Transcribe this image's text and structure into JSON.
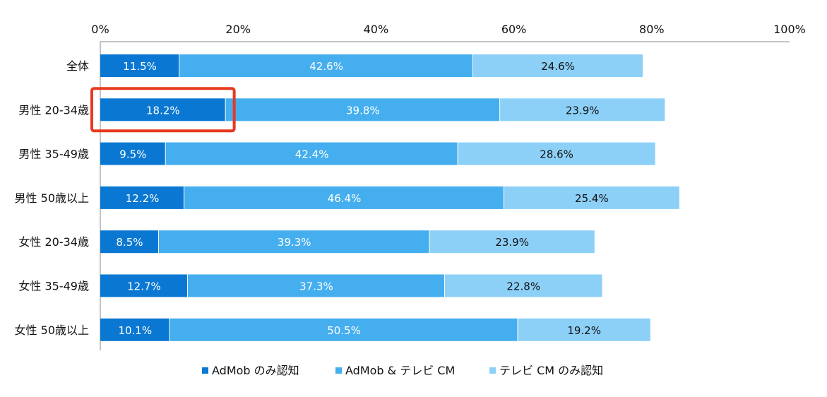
{
  "chart_data": {
    "type": "bar",
    "orientation": "horizontal",
    "stacked": true,
    "categories": [
      "全体",
      "男性 20-34歳",
      "男性 35-49歳",
      "男性 50歳以上",
      "女性 20-34歳",
      "女性 35-49歳",
      "女性 50歳以上"
    ],
    "series": [
      {
        "name": "AdMob のみ認知",
        "color": "#0a78d2",
        "label_color": "#ffffff",
        "values": [
          11.5,
          18.2,
          9.5,
          12.2,
          8.5,
          12.7,
          10.1
        ],
        "labels": [
          "11.5%",
          "18.2%",
          "9.5%",
          "12.2%",
          "8.5%",
          "12.7%",
          "10.1%"
        ]
      },
      {
        "name": "AdMob & テレビ CM",
        "color": "#45aeee",
        "label_color": "#ffffff",
        "values": [
          42.6,
          39.8,
          42.4,
          46.4,
          39.3,
          37.3,
          50.5
        ],
        "labels": [
          "42.6%",
          "39.8%",
          "42.4%",
          "46.4%",
          "39.3%",
          "37.3%",
          "50.5%"
        ]
      },
      {
        "name": "テレビ CM のみ認知",
        "color": "#8dd0f7",
        "label_color": "#111111",
        "values": [
          24.6,
          23.9,
          28.6,
          25.4,
          23.9,
          22.8,
          19.2
        ],
        "labels": [
          "24.6%",
          "23.9%",
          "28.6%",
          "25.4%",
          "23.9%",
          "22.8%",
          "19.2%"
        ]
      }
    ],
    "xlim": [
      0,
      100
    ],
    "x_ticks": [
      "0%",
      "20%",
      "40%",
      "60%",
      "80%",
      "100%"
    ],
    "x_tick_values": [
      0,
      20,
      40,
      60,
      80,
      100
    ],
    "x_axis_position": "top",
    "grid": false,
    "legend_position": "bottom",
    "title": "",
    "xlabel": "",
    "ylabel": "",
    "highlight": {
      "category_index": 1,
      "series_index": 0,
      "color": "#e8391f"
    }
  }
}
